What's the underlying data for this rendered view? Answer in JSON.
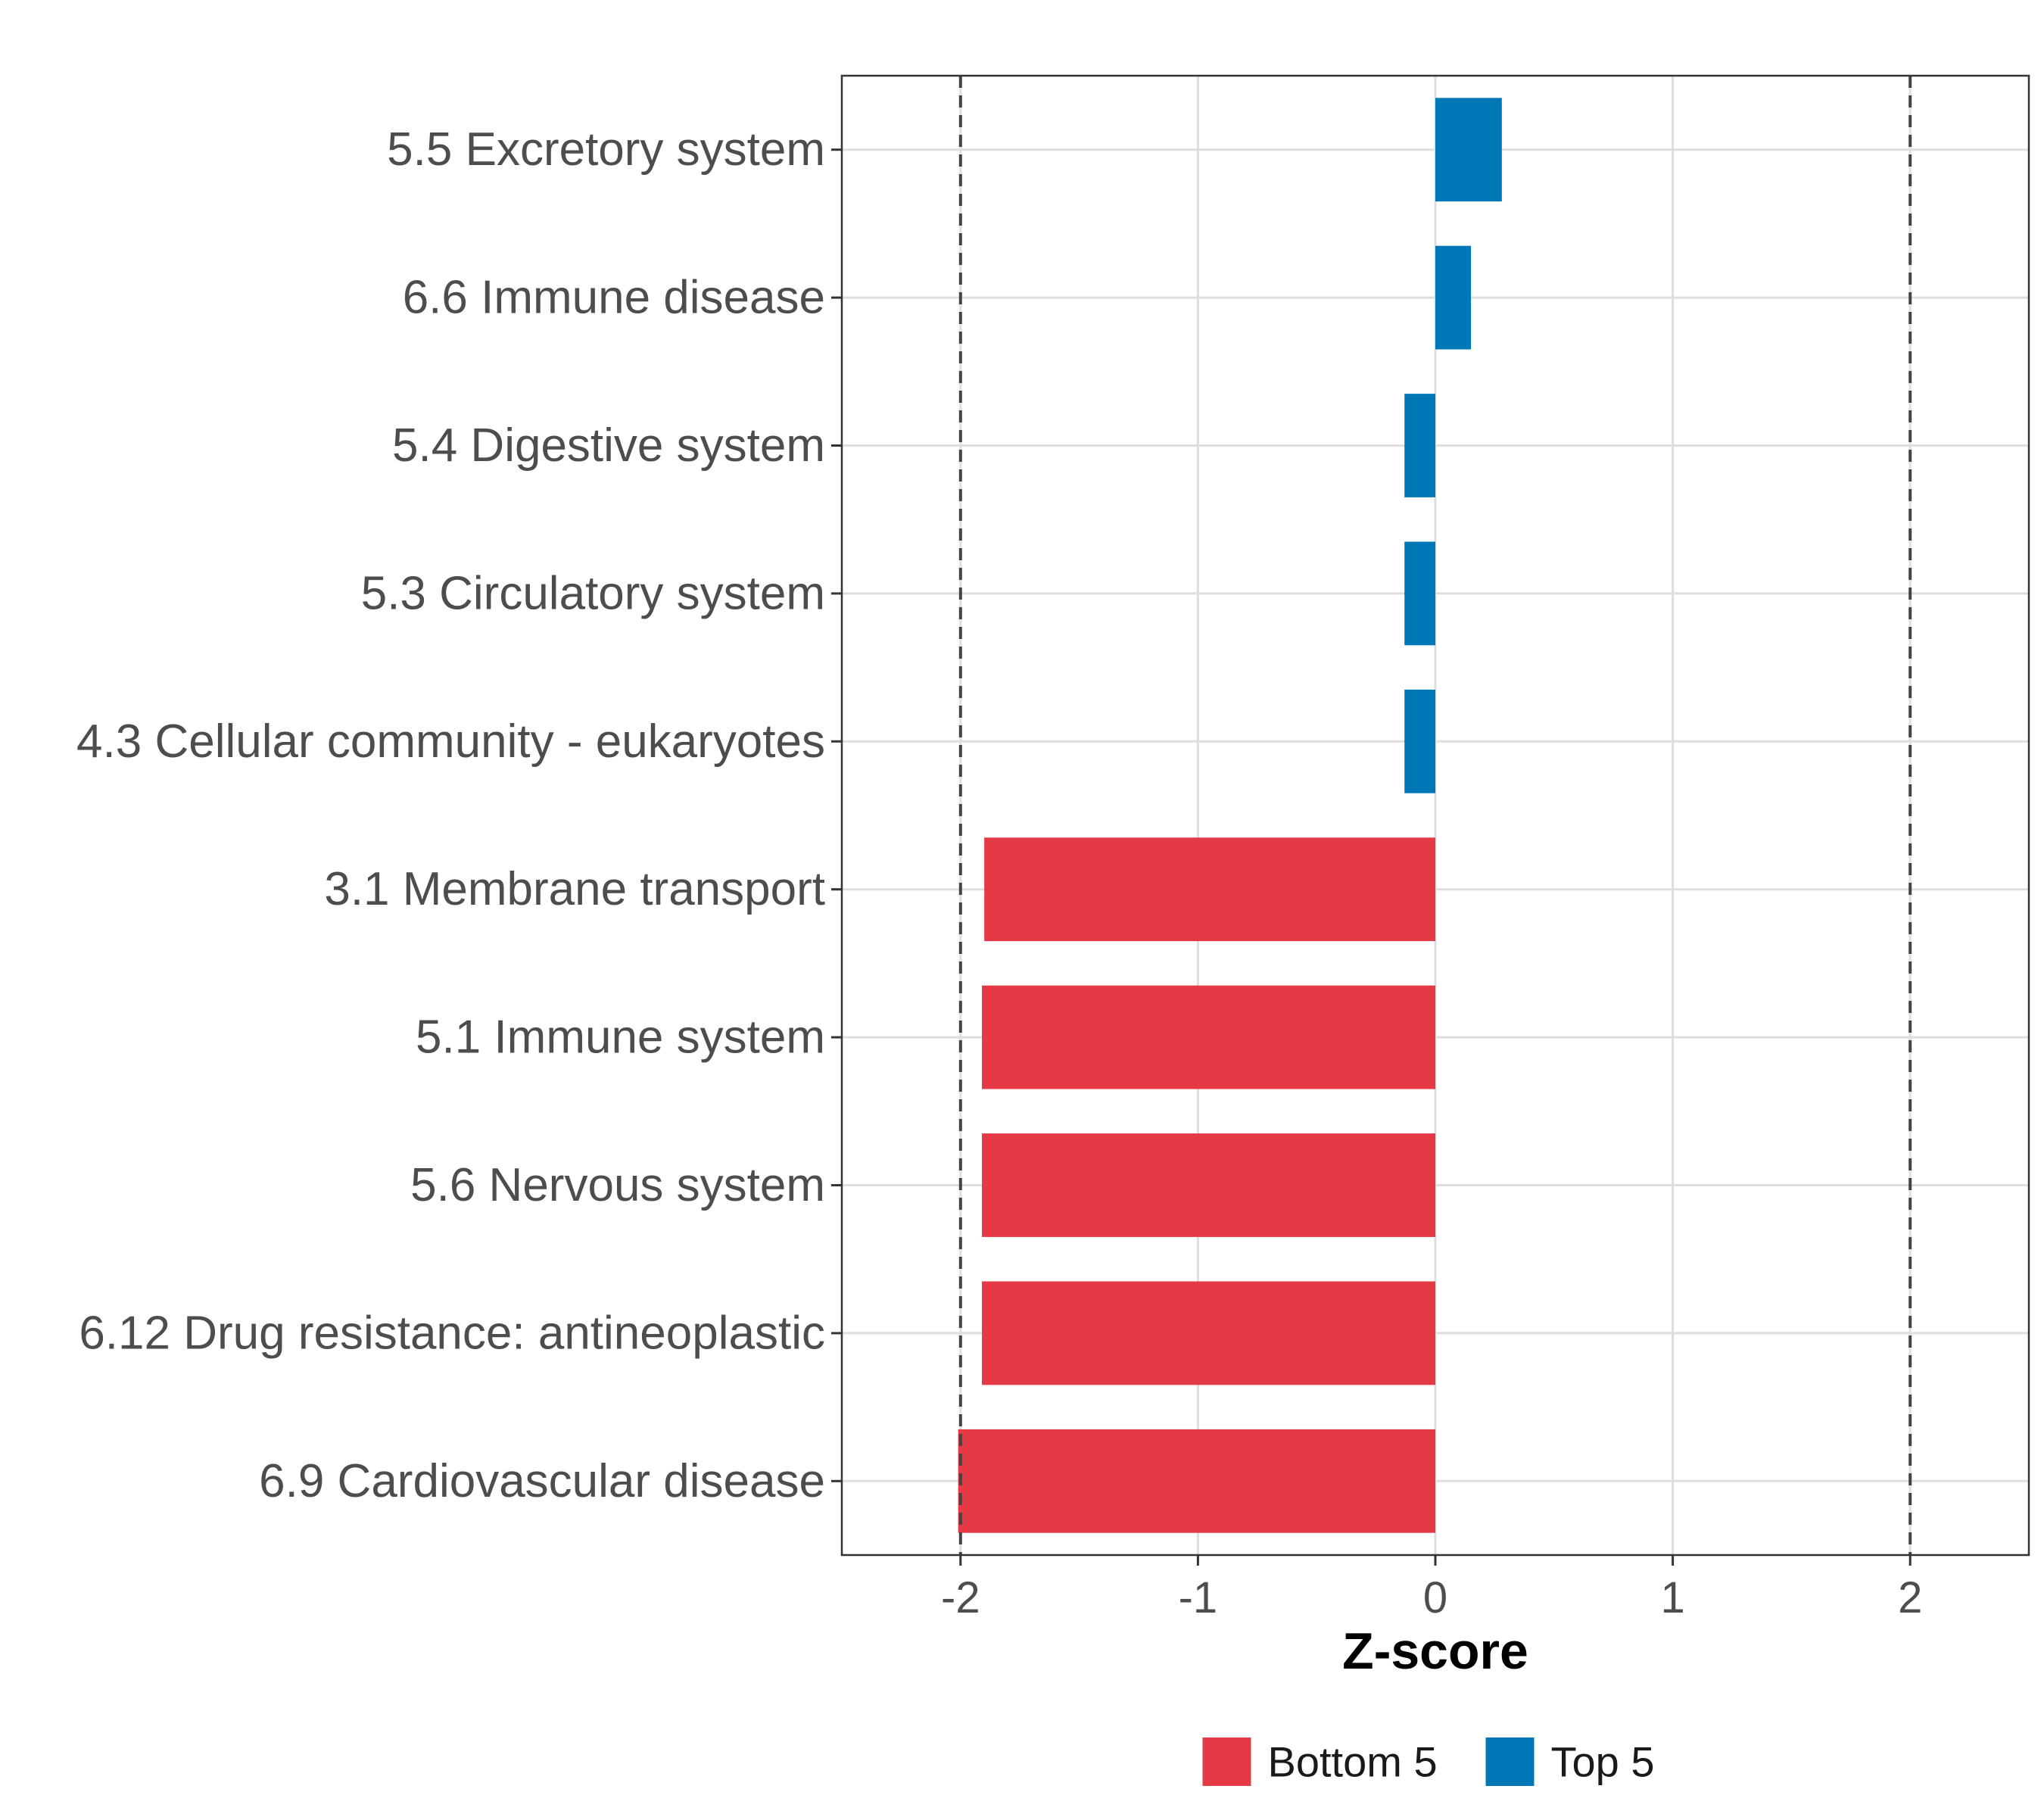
{
  "chart_data": {
    "type": "bar",
    "orientation": "horizontal",
    "title": "",
    "xlabel": "Z-score",
    "ylabel": "",
    "xlim": [
      -2.5,
      2.5
    ],
    "x_ticks": [
      -2,
      -1,
      0,
      1,
      2
    ],
    "x_tick_labels": [
      "-2",
      "-1",
      "0",
      "1",
      "2"
    ],
    "reference_lines": [
      -2,
      2
    ],
    "grid": true,
    "legend_position": "bottom",
    "categories": [
      "5.5 Excretory system",
      "6.6 Immune disease",
      "5.4 Digestive system",
      "5.3 Circulatory system",
      "4.3 Cellular community - eukaryotes",
      "3.1 Membrane transport",
      "5.1 Immune system",
      "5.6 Nervous system",
      "6.12 Drug resistance: antineoplastic",
      "6.9 Cardiovascular disease"
    ],
    "values": [
      0.28,
      0.15,
      -0.13,
      -0.13,
      -0.13,
      -1.9,
      -1.91,
      -1.91,
      -1.91,
      -2.01
    ],
    "groups": [
      "Top 5",
      "Top 5",
      "Top 5",
      "Top 5",
      "Top 5",
      "Bottom 5",
      "Bottom 5",
      "Bottom 5",
      "Bottom 5",
      "Bottom 5"
    ],
    "legend": [
      {
        "name": "Bottom 5",
        "color": "#e63946"
      },
      {
        "name": "Top 5",
        "color": "#0077b6"
      }
    ]
  }
}
